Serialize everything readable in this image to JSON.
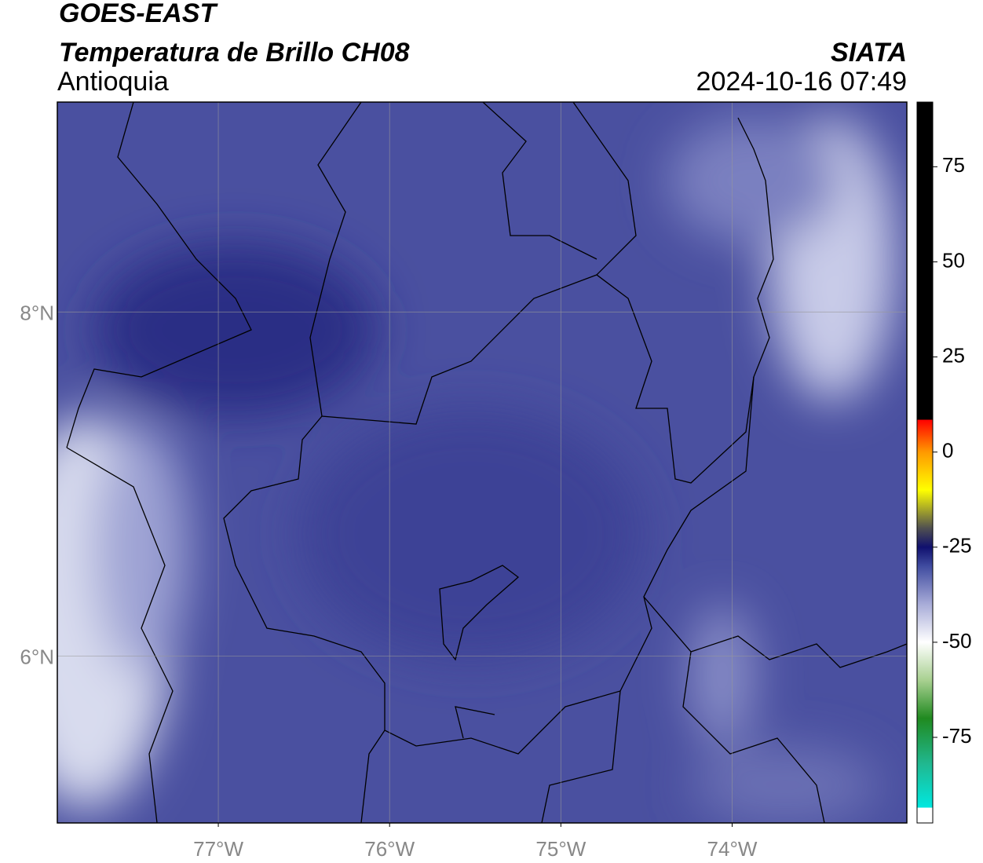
{
  "header": {
    "title": "GOES-EAST",
    "subtitle": "Temperatura de Brillo CH08",
    "region": "Antioquia",
    "source": "SIATA",
    "datetime": "2024-10-16 07:49"
  },
  "map": {
    "xlim": [
      -77.94,
      -72.98
    ],
    "ylim": [
      5.03,
      9.22
    ],
    "xticks": [
      {
        "value": -77,
        "label": "77°W"
      },
      {
        "value": -76,
        "label": "76°W"
      },
      {
        "value": -75,
        "label": "75°W"
      },
      {
        "value": -74,
        "label": "74°W"
      }
    ],
    "yticks": [
      {
        "value": 6,
        "label": "6°N"
      },
      {
        "value": 8,
        "label": "8°N"
      }
    ],
    "grid": true
  },
  "colorbar": {
    "lim": [
      -97.5,
      92
    ],
    "ticks": [
      -75,
      -50,
      -25,
      0,
      25,
      50,
      75
    ],
    "colormap": [
      {
        "value": -97.5,
        "color": "#ffffff"
      },
      {
        "value": -93.5,
        "color": "#ffffff"
      },
      {
        "value": -93.5,
        "color": "#00e8e0"
      },
      {
        "value": -82,
        "color": "#20b890"
      },
      {
        "value": -70,
        "color": "#208a20"
      },
      {
        "value": -60,
        "color": "#a8d090"
      },
      {
        "value": -50,
        "color": "#ffffff"
      },
      {
        "value": -40,
        "color": "#a8acd8"
      },
      {
        "value": -30,
        "color": "#404ca0"
      },
      {
        "value": -25,
        "color": "#10106e"
      },
      {
        "value": -20,
        "color": "#505050"
      },
      {
        "value": -10,
        "color": "#ffff00"
      },
      {
        "value": 0,
        "color": "#ff9900"
      },
      {
        "value": 8.5,
        "color": "#ff0000"
      },
      {
        "value": 8.5,
        "color": "#000000"
      },
      {
        "value": 92,
        "color": "#000000"
      }
    ]
  }
}
